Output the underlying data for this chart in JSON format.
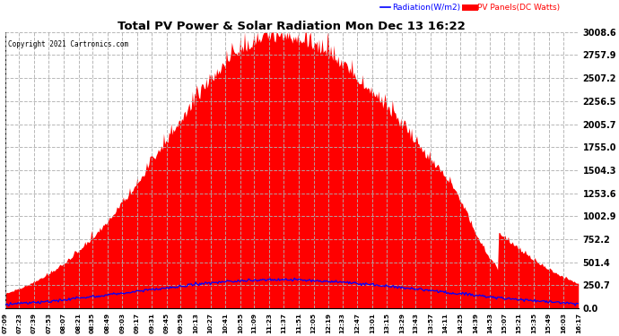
{
  "title": "Total PV Power & Solar Radiation Mon Dec 13 16:22",
  "copyright_text": "Copyright 2021 Cartronics.com",
  "legend_radiation": "Radiation(W/m2)",
  "legend_pv": "PV Panels(DC Watts)",
  "ymax": 3008.6,
  "yticks": [
    0.0,
    250.7,
    501.4,
    752.2,
    1002.9,
    1253.6,
    1504.3,
    1755.0,
    2005.7,
    2256.5,
    2507.2,
    2757.9,
    3008.6
  ],
  "background_color": "#ffffff",
  "pv_color": "#ff0000",
  "radiation_color": "#0000ff",
  "grid_color": "#b0b0b0",
  "title_color": "#000000",
  "copyright_color": "#000000",
  "x_tick_labels": [
    "07:09",
    "07:23",
    "07:39",
    "07:53",
    "08:07",
    "08:21",
    "08:35",
    "08:49",
    "09:03",
    "09:17",
    "09:31",
    "09:45",
    "09:59",
    "10:13",
    "10:27",
    "10:41",
    "10:55",
    "11:09",
    "11:23",
    "11:37",
    "11:51",
    "12:05",
    "12:19",
    "12:33",
    "12:47",
    "13:01",
    "13:15",
    "13:29",
    "13:43",
    "13:57",
    "14:11",
    "14:25",
    "14:39",
    "14:53",
    "15:07",
    "15:21",
    "15:35",
    "15:49",
    "16:03",
    "16:17"
  ],
  "pv_seed": 1234,
  "rad_seed": 5678,
  "n_points": 540
}
